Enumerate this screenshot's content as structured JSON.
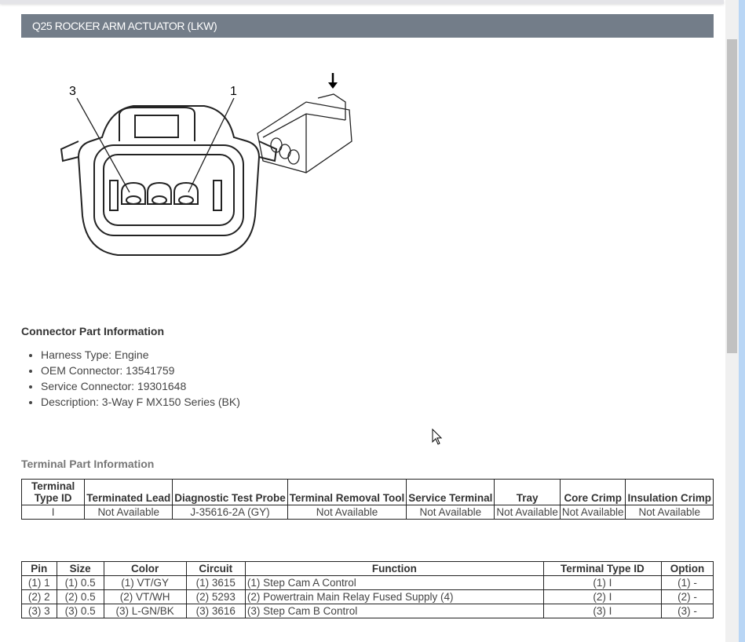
{
  "header": {
    "title": "Q25 ROCKER ARM ACTUATOR (LKW)"
  },
  "diagram": {
    "pin_labels": [
      "3",
      "1"
    ]
  },
  "connector_info": {
    "title": "Connector Part Information",
    "items": [
      "Harness Type: Engine",
      "OEM Connector: 13541759",
      "Service Connector: 19301648",
      "Description: 3-Way F MX150 Series (BK)"
    ]
  },
  "terminal_info": {
    "title": "Terminal Part Information",
    "headers": [
      "Terminal Type ID",
      "Terminated Lead",
      "Diagnostic Test Probe",
      "Terminal Removal Tool",
      "Service Terminal",
      "Tray",
      "Core Crimp",
      "Insulation Crimp"
    ],
    "rows": [
      [
        "I",
        "Not Available",
        "J-35616-2A (GY)",
        "Not Available",
        "Not Available",
        "Not Available",
        "Not Available",
        "Not Available"
      ]
    ]
  },
  "pin_table": {
    "headers": [
      "Pin",
      "Size",
      "Color",
      "Circuit",
      "Function",
      "Terminal Type ID",
      "Option"
    ],
    "rows": [
      [
        "(1) 1",
        "(1) 0.5",
        "(1) VT/GY",
        "(1) 3615",
        "(1) Step Cam A Control",
        "(1) I",
        "(1) -"
      ],
      [
        "(2) 2",
        "(2) 0.5",
        "(2) VT/WH",
        "(2) 5293",
        "(2) Powertrain Main Relay Fused Supply (4)",
        "(2) I",
        "(2) -"
      ],
      [
        "(3) 3",
        "(3) 0.5",
        "(3) L-GN/BK",
        "(3) 3616",
        "(3) Step Cam B Control",
        "(3) I",
        "(3) -"
      ]
    ]
  },
  "colors": {
    "header_bg": "#737d89"
  }
}
